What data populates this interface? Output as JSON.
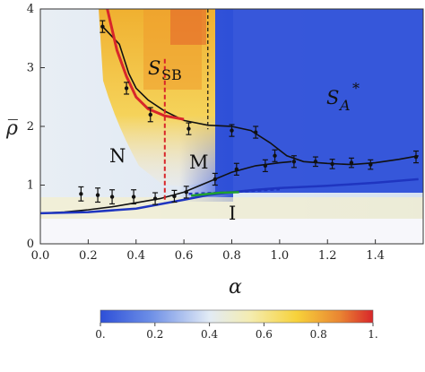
{
  "chart_data": {
    "type": "line",
    "title": "",
    "xlabel": "α",
    "ylabel": "ρ̅",
    "xlim": [
      0,
      1.6
    ],
    "ylim": [
      0,
      4
    ],
    "x_ticks": [
      "0.0",
      "0.2",
      "0.4",
      "0.6",
      "0.8",
      "1.0",
      "1.2",
      "1.4"
    ],
    "y_ticks": [
      "0",
      "1",
      "2",
      "3",
      "4"
    ],
    "grid": false,
    "background": "heatmap of the order parameter (blue low, yellow/red high)",
    "region_labels": {
      "N": "N",
      "M": "M",
      "I": "I",
      "SB_main": "S",
      "SB_sub": "SB",
      "A_main": "S",
      "A_sub": "A",
      "A_sup": "*"
    },
    "colorbar": {
      "ticks": [
        "0.",
        "0.2",
        "0.4",
        "0.6",
        "0.8",
        "1."
      ],
      "colors": [
        "#2d4fd8",
        "#6b8de6",
        "#e2ebf5",
        "#f4ecb0",
        "#f7d23a",
        "#e98432",
        "#d8262a"
      ]
    },
    "series": [
      {
        "points": [
          [
            0.26,
            3.7
          ],
          [
            0.33,
            3.4
          ],
          [
            0.37,
            2.9
          ],
          [
            0.4,
            2.65
          ],
          [
            0.45,
            2.45
          ],
          [
            0.52,
            2.26
          ],
          [
            0.6,
            2.1
          ],
          [
            0.7,
            2.02
          ],
          [
            0.8,
            2.0
          ],
          [
            0.88,
            1.93
          ],
          [
            0.96,
            1.72
          ],
          [
            1.03,
            1.5
          ],
          [
            1.1,
            1.4
          ],
          [
            1.2,
            1.37
          ],
          [
            1.3,
            1.35
          ],
          [
            1.4,
            1.38
          ],
          [
            1.5,
            1.44
          ],
          [
            1.58,
            1.5
          ]
        ],
        "error_points": [
          [
            0.26,
            3.7,
            0.1
          ],
          [
            0.36,
            2.65,
            0.1
          ],
          [
            0.46,
            2.2,
            0.12
          ],
          [
            0.62,
            1.96,
            0.1
          ],
          [
            0.8,
            1.93,
            0.1
          ],
          [
            0.9,
            1.9,
            0.1
          ],
          [
            0.98,
            1.5,
            0.1
          ],
          [
            1.06,
            1.4,
            0.1
          ],
          [
            1.15,
            1.4,
            0.08
          ],
          [
            1.22,
            1.36,
            0.08
          ],
          [
            1.3,
            1.38,
            0.08
          ],
          [
            1.38,
            1.35,
            0.08
          ],
          [
            1.57,
            1.48,
            0.1
          ]
        ],
        "color": "#111111"
      },
      {
        "points": [
          [
            0.0,
            0.52
          ],
          [
            0.1,
            0.54
          ],
          [
            0.2,
            0.58
          ],
          [
            0.3,
            0.63
          ],
          [
            0.4,
            0.7
          ],
          [
            0.5,
            0.77
          ],
          [
            0.6,
            0.88
          ],
          [
            0.7,
            1.05
          ],
          [
            0.8,
            1.22
          ],
          [
            0.9,
            1.33
          ],
          [
            1.0,
            1.38
          ],
          [
            1.05,
            1.4
          ]
        ],
        "error_points": [
          [
            0.17,
            0.85,
            0.12
          ],
          [
            0.24,
            0.83,
            0.12
          ],
          [
            0.3,
            0.8,
            0.12
          ],
          [
            0.39,
            0.8,
            0.12
          ],
          [
            0.48,
            0.77,
            0.1
          ],
          [
            0.56,
            0.81,
            0.1
          ],
          [
            0.61,
            0.88,
            0.1
          ],
          [
            0.73,
            1.1,
            0.1
          ],
          [
            0.82,
            1.27,
            0.1
          ],
          [
            0.94,
            1.33,
            0.1
          ]
        ],
        "color": "#111111"
      },
      {
        "points": [
          [
            0.28,
            4.0
          ],
          [
            0.32,
            3.3
          ],
          [
            0.36,
            2.85
          ],
          [
            0.4,
            2.5
          ],
          [
            0.45,
            2.3
          ],
          [
            0.52,
            2.18
          ],
          [
            0.6,
            2.12
          ]
        ],
        "color": "#d8262a"
      },
      {
        "points": [
          [
            0.52,
            3.15
          ],
          [
            0.52,
            1.6
          ],
          [
            0.52,
            0.7
          ]
        ],
        "color": "#d8262a",
        "dash": true
      },
      {
        "points": [
          [
            0.7,
            4.0
          ],
          [
            0.7,
            1.95
          ]
        ],
        "color": "#111111",
        "dash": true
      },
      {
        "points": [
          [
            0.0,
            0.52
          ],
          [
            0.2,
            0.54
          ],
          [
            0.4,
            0.6
          ],
          [
            0.6,
            0.75
          ],
          [
            0.7,
            0.83
          ],
          [
            0.8,
            0.88
          ],
          [
            0.9,
            0.92
          ],
          [
            1.0,
            0.95
          ],
          [
            1.2,
            0.99
          ],
          [
            1.4,
            1.04
          ],
          [
            1.58,
            1.1
          ]
        ],
        "color": "#1f35c0"
      },
      {
        "points": [
          [
            0.62,
            0.85
          ],
          [
            0.8,
            0.88
          ],
          [
            1.0,
            0.93
          ]
        ],
        "color": "#1f35c0",
        "dash": true
      },
      {
        "points": [
          [
            0.63,
            0.82
          ],
          [
            0.75,
            0.87
          ],
          [
            0.83,
            0.88
          ]
        ],
        "color": "#20a030"
      }
    ]
  }
}
